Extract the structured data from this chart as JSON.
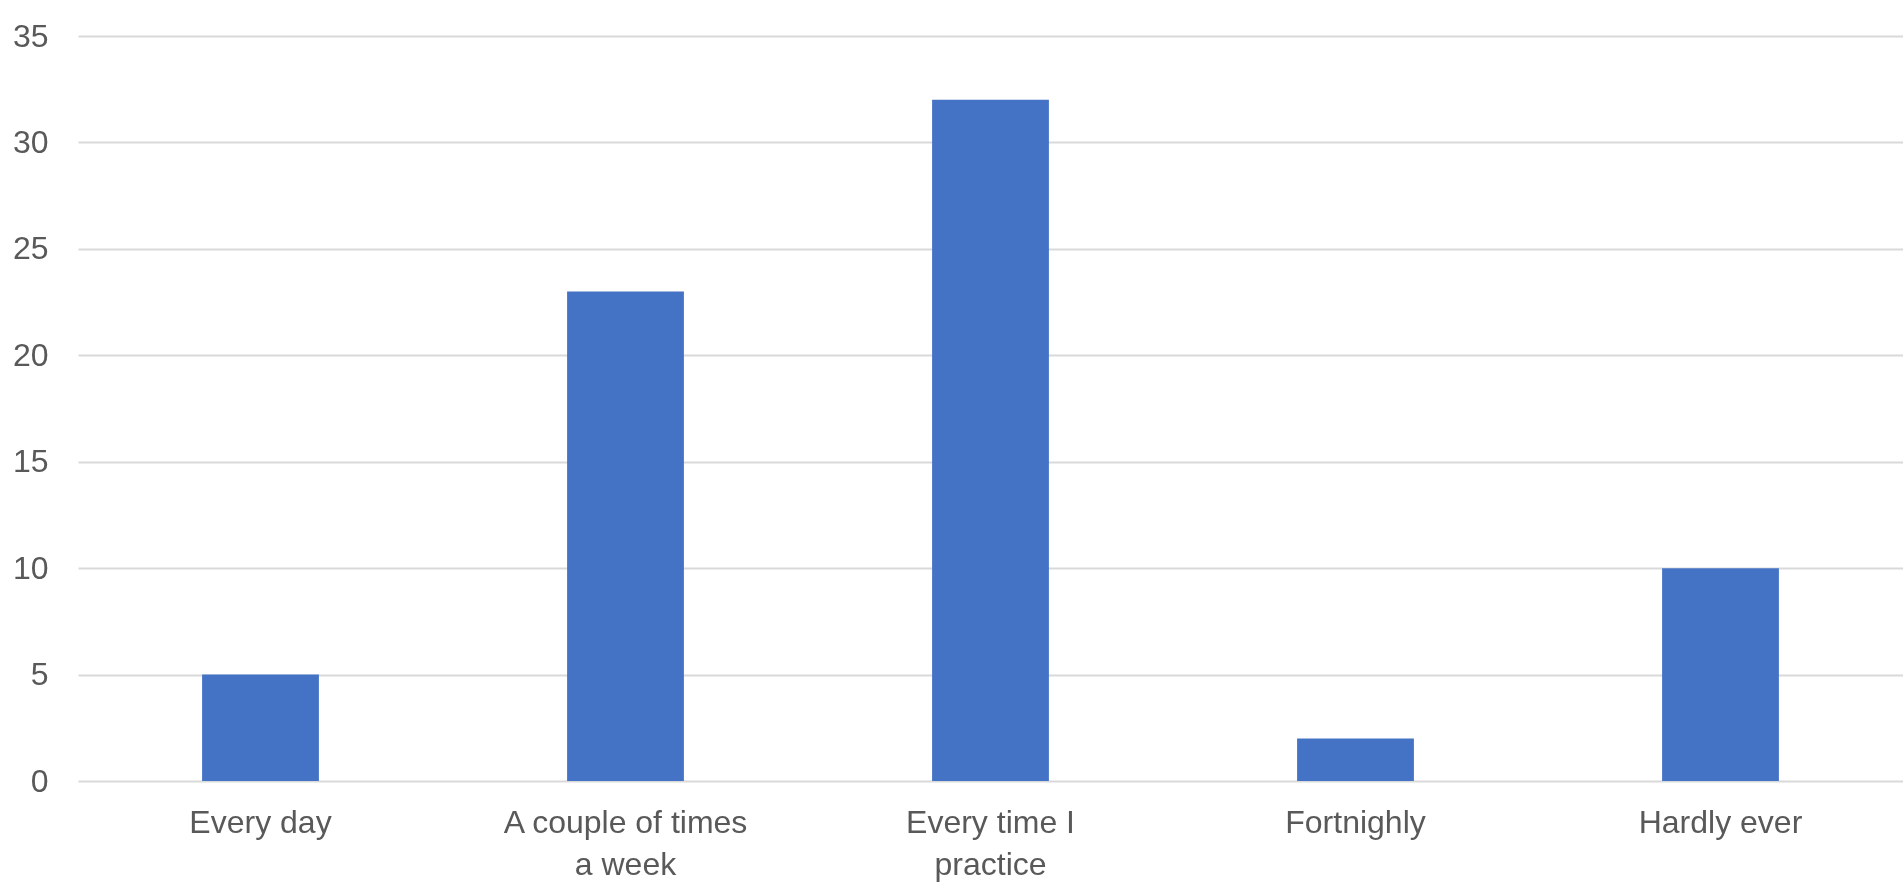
{
  "chart_data": {
    "type": "bar",
    "categories": [
      "Every day",
      "A couple of times a week",
      "Every time I practice",
      "Fortnighly",
      "Hardly ever"
    ],
    "values": [
      5,
      23,
      32,
      2,
      10
    ],
    "color": "#4472c4",
    "ylim": [
      0,
      35
    ],
    "yticks": [
      0,
      5,
      10,
      15,
      20,
      25,
      30,
      35
    ],
    "grid": "y"
  }
}
